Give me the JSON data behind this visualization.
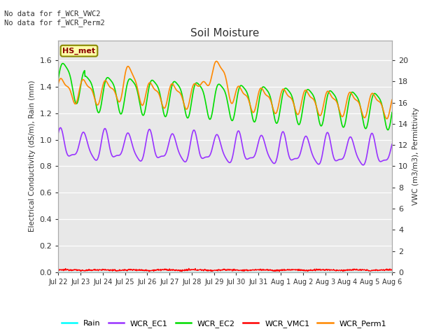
{
  "title": "Soil Moisture",
  "ylabel_left": "Electrical Conductivity (dS/m), Rain (mm)",
  "ylabel_right": "VWC (m3/m3), Permittivity",
  "ylim_left": [
    0,
    1.75
  ],
  "ylim_right": [
    0,
    21.875
  ],
  "annotation_text": "No data for f_WCR_VWC2\nNo data for f_WCR_Perm2",
  "hs_met_label": "HS_met",
  "legend_items": [
    "Rain",
    "WCR_EC1",
    "WCR_EC2",
    "WCR_VMC1",
    "WCR_Perm1"
  ],
  "legend_colors": [
    "#00ffff",
    "#9933ff",
    "#00dd00",
    "#ff0000",
    "#ff8800"
  ],
  "line_colors": {
    "Rain": "#00ffff",
    "WCR_EC1": "#9933ff",
    "WCR_EC2": "#00dd00",
    "WCR_VMC1": "#ff0000",
    "WCR_Perm1": "#ff8800"
  },
  "background_color": "#e8e8e8",
  "n_points": 1000,
  "figsize": [
    6.4,
    4.8
  ],
  "dpi": 100
}
